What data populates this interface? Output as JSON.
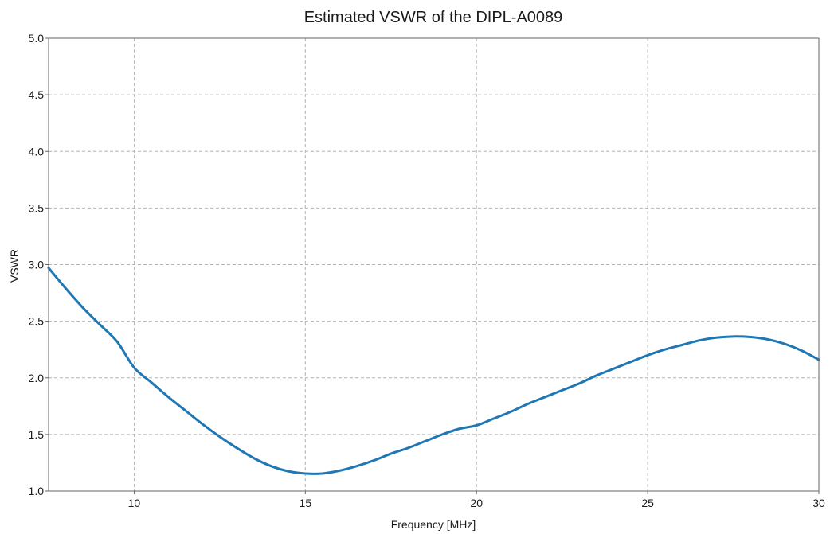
{
  "chart_data": {
    "type": "line",
    "title": "Estimated VSWR of the DIPL-A0089",
    "xlabel": "Frequency [MHz]",
    "ylabel": "VSWR",
    "xlim": [
      7.5,
      30
    ],
    "ylim": [
      1.0,
      5.0
    ],
    "xticks": [
      10,
      15,
      20,
      25,
      30
    ],
    "xtick_labels": [
      "10",
      "15",
      "20",
      "25",
      "30"
    ],
    "yticks": [
      1.0,
      1.5,
      2.0,
      2.5,
      3.0,
      3.5,
      4.0,
      4.5,
      5.0
    ],
    "ytick_labels": [
      "1.0",
      "1.5",
      "2.0",
      "2.5",
      "3.0",
      "3.5",
      "4.0",
      "4.5",
      "5.0"
    ],
    "grid": true,
    "series": [
      {
        "color": "#1f77b4",
        "x": [
          7.5,
          8.0,
          8.5,
          9.0,
          9.5,
          10.0,
          10.5,
          11.0,
          11.5,
          12.0,
          12.5,
          13.0,
          13.5,
          14.0,
          14.5,
          15.0,
          15.5,
          16.0,
          16.5,
          17.0,
          17.5,
          18.0,
          18.5,
          19.0,
          19.5,
          20.0,
          20.5,
          21.0,
          21.5,
          22.0,
          22.5,
          23.0,
          23.5,
          24.0,
          24.5,
          25.0,
          25.5,
          26.0,
          26.5,
          27.0,
          27.5,
          28.0,
          28.5,
          29.0,
          29.5,
          30.0
        ],
        "values": [
          2.97,
          2.79,
          2.62,
          2.47,
          2.32,
          2.09,
          1.96,
          1.83,
          1.71,
          1.59,
          1.48,
          1.38,
          1.29,
          1.22,
          1.175,
          1.155,
          1.155,
          1.18,
          1.22,
          1.27,
          1.33,
          1.38,
          1.44,
          1.5,
          1.55,
          1.58,
          1.64,
          1.7,
          1.77,
          1.83,
          1.89,
          1.95,
          2.02,
          2.08,
          2.14,
          2.2,
          2.25,
          2.29,
          2.33,
          2.355,
          2.365,
          2.36,
          2.34,
          2.3,
          2.24,
          2.16
        ]
      }
    ]
  }
}
